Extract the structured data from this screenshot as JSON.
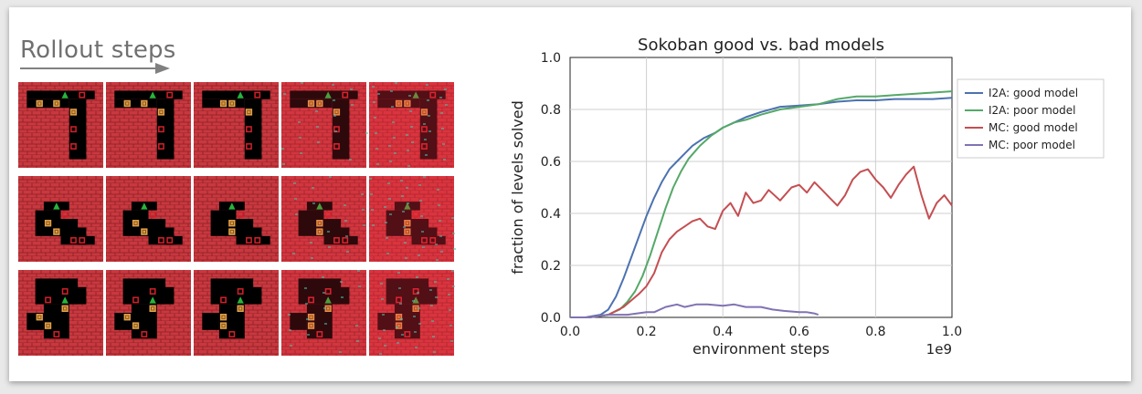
{
  "panel": {
    "rollout_title": "Rollout steps"
  },
  "sokoban_rollouts": {
    "rows": 3,
    "steps_per_row": 5
  },
  "colors": {
    "wall": "#c8383f",
    "floor": "#000000",
    "box": "#e3a14a",
    "target": "#d2202a",
    "agent": "#28b43c",
    "arrow": "#808080"
  },
  "chart_data": {
    "type": "line",
    "title": "Sokoban good vs. bad models",
    "xlabel": "environment steps",
    "ylabel": "fraction of levels solved",
    "x_scale_label": "1e9",
    "xlim": [
      0,
      1.0
    ],
    "ylim": [
      0,
      1.0
    ],
    "x_ticks": [
      "0.0",
      "0.2",
      "0.4",
      "0.6",
      "0.8",
      "1.0"
    ],
    "y_ticks": [
      "0.0",
      "0.2",
      "0.4",
      "0.6",
      "0.8",
      "1.0"
    ],
    "grid": true,
    "legend_position": "right",
    "series": [
      {
        "name": "I2A: good model",
        "color": "#4c72b0",
        "x": [
          0.0,
          0.04,
          0.08,
          0.1,
          0.12,
          0.14,
          0.16,
          0.18,
          0.2,
          0.22,
          0.24,
          0.26,
          0.28,
          0.3,
          0.32,
          0.35,
          0.38,
          0.4,
          0.43,
          0.46,
          0.5,
          0.55,
          0.6,
          0.65,
          0.7,
          0.75,
          0.8,
          0.85,
          0.9,
          0.95,
          1.0
        ],
        "y": [
          0.0,
          0.0,
          0.01,
          0.03,
          0.08,
          0.15,
          0.23,
          0.31,
          0.39,
          0.46,
          0.52,
          0.57,
          0.6,
          0.63,
          0.66,
          0.69,
          0.71,
          0.73,
          0.75,
          0.77,
          0.79,
          0.81,
          0.815,
          0.82,
          0.83,
          0.835,
          0.835,
          0.84,
          0.84,
          0.84,
          0.845
        ]
      },
      {
        "name": "I2A: poor model",
        "color": "#55a868",
        "x": [
          0.0,
          0.05,
          0.1,
          0.13,
          0.15,
          0.17,
          0.19,
          0.21,
          0.23,
          0.25,
          0.27,
          0.29,
          0.31,
          0.34,
          0.37,
          0.4,
          0.43,
          0.46,
          0.5,
          0.55,
          0.6,
          0.65,
          0.7,
          0.75,
          0.8,
          0.85,
          0.9,
          0.95,
          1.0
        ],
        "y": [
          0.0,
          0.0,
          0.01,
          0.03,
          0.06,
          0.1,
          0.16,
          0.24,
          0.33,
          0.42,
          0.5,
          0.56,
          0.61,
          0.66,
          0.7,
          0.73,
          0.75,
          0.76,
          0.78,
          0.8,
          0.81,
          0.82,
          0.84,
          0.85,
          0.85,
          0.855,
          0.86,
          0.865,
          0.87
        ]
      },
      {
        "name": "MC: good model",
        "color": "#c44e52",
        "x": [
          0.0,
          0.05,
          0.1,
          0.14,
          0.18,
          0.2,
          0.22,
          0.24,
          0.26,
          0.28,
          0.3,
          0.32,
          0.34,
          0.36,
          0.38,
          0.4,
          0.42,
          0.44,
          0.46,
          0.48,
          0.5,
          0.52,
          0.55,
          0.58,
          0.6,
          0.62,
          0.64,
          0.66,
          0.68,
          0.7,
          0.72,
          0.74,
          0.76,
          0.78,
          0.8,
          0.82,
          0.84,
          0.86,
          0.88,
          0.9,
          0.92,
          0.94,
          0.96,
          0.98,
          1.0
        ],
        "y": [
          0.0,
          0.0,
          0.01,
          0.04,
          0.09,
          0.12,
          0.17,
          0.25,
          0.3,
          0.33,
          0.35,
          0.37,
          0.38,
          0.35,
          0.34,
          0.41,
          0.44,
          0.39,
          0.48,
          0.44,
          0.45,
          0.49,
          0.45,
          0.5,
          0.51,
          0.48,
          0.52,
          0.49,
          0.46,
          0.43,
          0.47,
          0.53,
          0.56,
          0.57,
          0.53,
          0.5,
          0.46,
          0.51,
          0.55,
          0.58,
          0.47,
          0.38,
          0.44,
          0.47,
          0.43
        ]
      },
      {
        "name": "MC: poor model",
        "color": "#8172b2",
        "x": [
          0.0,
          0.05,
          0.1,
          0.15,
          0.2,
          0.22,
          0.25,
          0.28,
          0.3,
          0.33,
          0.36,
          0.4,
          0.43,
          0.46,
          0.5,
          0.53,
          0.56,
          0.6,
          0.62,
          0.64,
          0.65
        ],
        "y": [
          0.0,
          0.0,
          0.01,
          0.01,
          0.02,
          0.02,
          0.04,
          0.05,
          0.04,
          0.05,
          0.05,
          0.045,
          0.05,
          0.04,
          0.04,
          0.03,
          0.025,
          0.02,
          0.02,
          0.015,
          0.01
        ]
      }
    ]
  }
}
